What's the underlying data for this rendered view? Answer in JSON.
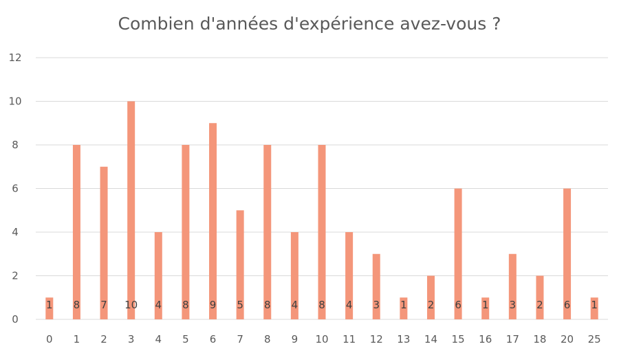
{
  "chart_data": {
    "type": "bar",
    "title": "Combien d'années d'expérience avez-vous ?",
    "categories": [
      "0",
      "1",
      "2",
      "3",
      "4",
      "5",
      "6",
      "7",
      "8",
      "9",
      "10",
      "11",
      "12",
      "13",
      "14",
      "15",
      "16",
      "17",
      "18",
      "20",
      "25"
    ],
    "values": [
      1,
      8,
      7,
      10,
      4,
      8,
      9,
      5,
      8,
      4,
      8,
      4,
      3,
      1,
      2,
      6,
      1,
      3,
      2,
      6,
      1
    ],
    "ylim": [
      0,
      12
    ],
    "yticks": [
      0,
      2,
      4,
      6,
      8,
      10,
      12
    ],
    "grid": true,
    "legend": "none",
    "bar_color": "#F4967A",
    "grid_color": "#D9D9D9",
    "text_color": "#595959"
  }
}
